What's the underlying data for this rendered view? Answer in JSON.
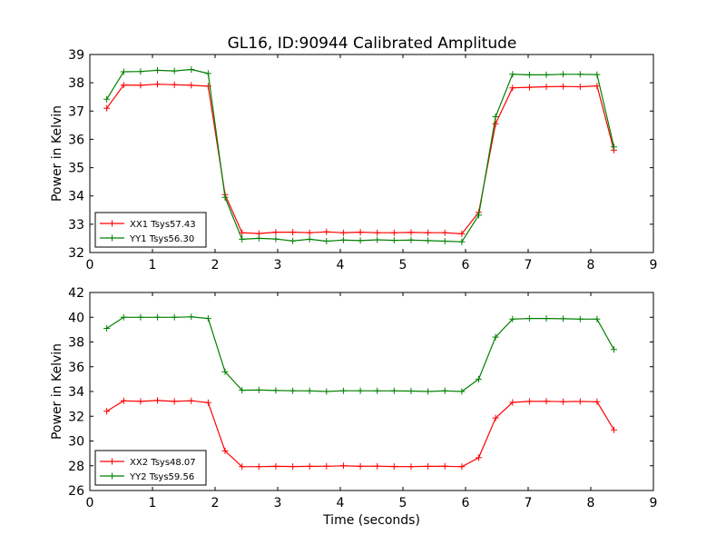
{
  "title": "GL16, ID:90944 Calibrated Amplitude",
  "chart_data": [
    {
      "type": "line",
      "ylabel": "Power in Kelvin",
      "xlabel": "",
      "xlim": [
        0,
        9
      ],
      "ylim": [
        32,
        39
      ],
      "xticks": [
        "0",
        "1",
        "2",
        "3",
        "4",
        "5",
        "6",
        "7",
        "8",
        "9"
      ],
      "yticks": [
        "32",
        "33",
        "34",
        "35",
        "36",
        "37",
        "38",
        "39"
      ],
      "legend_position": "lower-left",
      "grid": false,
      "x": [
        0.27,
        0.54,
        0.81,
        1.08,
        1.35,
        1.62,
        1.89,
        2.16,
        2.43,
        2.7,
        2.97,
        3.24,
        3.51,
        3.78,
        4.05,
        4.32,
        4.59,
        4.86,
        5.13,
        5.4,
        5.67,
        5.94,
        6.21,
        6.48,
        6.75,
        7.02,
        7.29,
        7.56,
        7.83,
        8.1,
        8.37
      ],
      "series": [
        {
          "name": "XX1 Tsys57.43",
          "color": "#ff0000",
          "values": [
            37.1,
            37.92,
            37.91,
            37.95,
            37.93,
            37.91,
            37.88,
            34.05,
            32.7,
            32.67,
            32.72,
            32.72,
            32.7,
            32.73,
            32.7,
            32.72,
            32.7,
            32.7,
            32.71,
            32.7,
            32.7,
            32.66,
            33.42,
            36.55,
            37.82,
            37.84,
            37.86,
            37.87,
            37.86,
            37.89,
            35.62
          ]
        },
        {
          "name": "YY1 Tsys56.30",
          "color": "#008000",
          "values": [
            37.42,
            38.39,
            38.4,
            38.44,
            38.42,
            38.47,
            38.33,
            33.95,
            32.47,
            32.5,
            32.48,
            32.41,
            32.47,
            32.4,
            32.44,
            32.42,
            32.45,
            32.43,
            32.44,
            32.42,
            32.4,
            32.38,
            33.32,
            36.8,
            38.3,
            38.28,
            38.28,
            38.3,
            38.3,
            38.29,
            35.73
          ]
        }
      ]
    },
    {
      "type": "line",
      "ylabel": "Power in Kelvin",
      "xlabel": "Time (seconds)",
      "xlim": [
        0,
        9
      ],
      "ylim": [
        26,
        42
      ],
      "xticks": [
        "0",
        "1",
        "2",
        "3",
        "4",
        "5",
        "6",
        "7",
        "8",
        "9"
      ],
      "yticks": [
        "26",
        "28",
        "30",
        "32",
        "34",
        "36",
        "38",
        "40",
        "42"
      ],
      "legend_position": "lower-left",
      "grid": false,
      "x": [
        0.27,
        0.54,
        0.81,
        1.08,
        1.35,
        1.62,
        1.89,
        2.16,
        2.43,
        2.7,
        2.97,
        3.24,
        3.51,
        3.78,
        4.05,
        4.32,
        4.59,
        4.86,
        5.13,
        5.4,
        5.67,
        5.94,
        6.21,
        6.48,
        6.75,
        7.02,
        7.29,
        7.56,
        7.83,
        8.1,
        8.37
      ],
      "series": [
        {
          "name": "XX2 Tsys48.07",
          "color": "#ff0000",
          "values": [
            32.4,
            33.25,
            33.2,
            33.27,
            33.2,
            33.25,
            33.1,
            29.2,
            27.92,
            27.93,
            27.95,
            27.94,
            27.95,
            27.96,
            28.0,
            27.95,
            27.97,
            27.94,
            27.93,
            27.95,
            27.96,
            27.92,
            28.65,
            31.85,
            33.12,
            33.2,
            33.21,
            33.18,
            33.19,
            33.17,
            30.9
          ]
        },
        {
          "name": "YY2 Tsys59.56",
          "color": "#008000",
          "values": [
            39.1,
            40.0,
            40.0,
            40.0,
            40.0,
            40.03,
            39.9,
            35.6,
            34.1,
            34.12,
            34.08,
            34.06,
            34.05,
            34.0,
            34.06,
            34.06,
            34.05,
            34.05,
            34.04,
            34.0,
            34.05,
            34.0,
            35.0,
            38.4,
            39.85,
            39.9,
            39.9,
            39.88,
            39.85,
            39.85,
            37.4
          ]
        }
      ]
    }
  ]
}
